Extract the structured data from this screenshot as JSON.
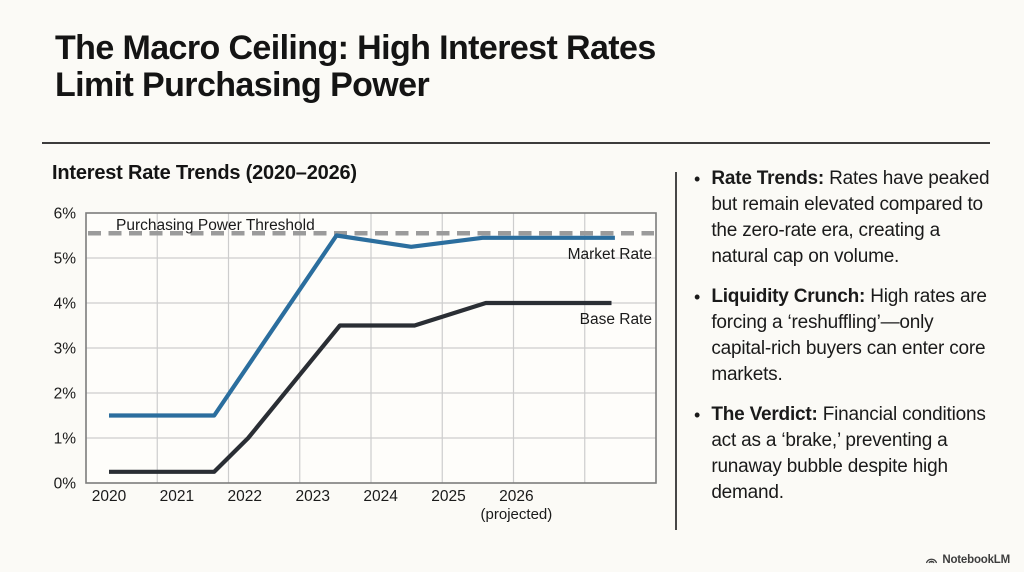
{
  "slide": {
    "title_line1": "The Macro Ceiling: High Interest Rates",
    "title_line2": "Limit Purchasing Power",
    "footer_brand": "NotebookLM"
  },
  "chart": {
    "title": "Interest Rate Trends (2020–2026)"
  },
  "chart_data": {
    "type": "line",
    "title": "Interest Rate Trends (2020–2026)",
    "categories": [
      "2020",
      "2021",
      "2022",
      "2023",
      "2024",
      "2025",
      "2026"
    ],
    "x_last_note": "(projected)",
    "y_ticks": [
      "6%",
      "5%",
      "4%",
      "3%",
      "2%",
      "1%",
      "0%"
    ],
    "ylim": [
      0,
      6
    ],
    "grid": true,
    "legend_position": "inline-right",
    "threshold": {
      "label": "Purchasing Power Threshold",
      "value": 5.55,
      "color": "#9b9b9b",
      "style": "dashed"
    },
    "series": [
      {
        "name": "Market Rate",
        "color": "#2b6e9e",
        "values": [
          1.5,
          1.5,
          3.0,
          5.5,
          5.25,
          5.45,
          5.45
        ],
        "points": [
          [
            2020,
            1.5
          ],
          [
            2021.55,
            1.5
          ],
          [
            2023.35,
            5.5
          ],
          [
            2024.45,
            5.25
          ],
          [
            2025.5,
            5.45
          ],
          [
            2027.45,
            5.45
          ]
        ],
        "label_anchor_value": 5.45
      },
      {
        "name": "Base Rate",
        "color": "#2a2e34",
        "values": [
          0.25,
          0.25,
          1.0,
          3.5,
          3.5,
          4.0,
          4.0
        ],
        "points": [
          [
            2020,
            0.25
          ],
          [
            2021.55,
            0.25
          ],
          [
            2022.05,
            1.0
          ],
          [
            2023.4,
            3.5
          ],
          [
            2024.5,
            3.5
          ],
          [
            2025.55,
            4.0
          ],
          [
            2027.4,
            4.0
          ]
        ],
        "label_anchor_value": 4.0
      }
    ]
  },
  "panel": {
    "bullets": [
      {
        "lead": "Rate Trends:",
        "text": "Rates have peaked but remain elevated compared to the zero-rate era, creating a natural cap on volume."
      },
      {
        "lead": "Liquidity Crunch:",
        "text": "High rates are forcing a ‘reshuffling’—only capital-rich buyers can enter core markets."
      },
      {
        "lead": "The Verdict:",
        "text": "Financial conditions act as a ‘brake,’ preventing a runaway bubble despite high demand."
      }
    ]
  }
}
